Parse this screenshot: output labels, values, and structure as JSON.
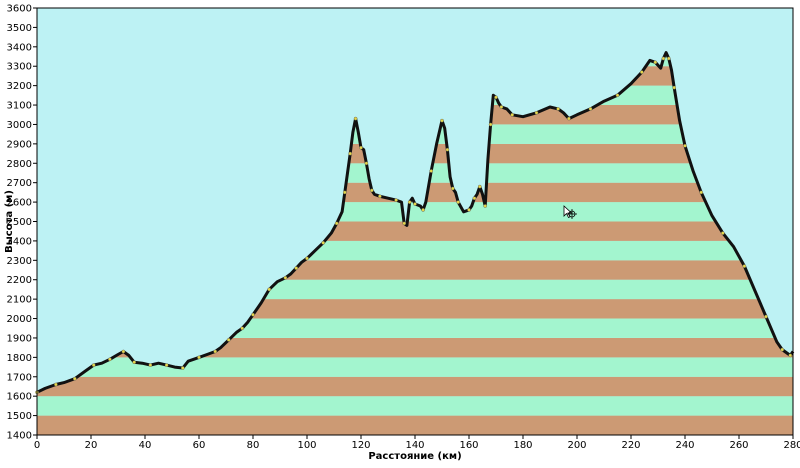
{
  "chart_data": {
    "type": "area",
    "title": "",
    "xlabel": "Расстояние (км)",
    "ylabel": "Высота (м)",
    "xlim": [
      0,
      280
    ],
    "ylim": [
      1400,
      3600
    ],
    "x_ticks": [
      0,
      20,
      40,
      60,
      80,
      100,
      120,
      140,
      160,
      180,
      200,
      220,
      240,
      260,
      280
    ],
    "y_ticks": [
      1400,
      1500,
      1600,
      1700,
      1800,
      1900,
      2000,
      2100,
      2200,
      2300,
      2400,
      2500,
      2600,
      2700,
      2800,
      2900,
      3000,
      3100,
      3200,
      3300,
      3400,
      3500,
      3600
    ],
    "colors": {
      "sky": "#bdf2f4",
      "band_light": "#a3f5cf",
      "band_dark": "#cc9a74",
      "profile_line": "#111111",
      "marker": "#e6d84a",
      "frame": "#000000"
    },
    "series": [
      {
        "x": [
          0,
          3,
          7,
          10,
          14,
          18,
          21,
          24,
          27,
          30,
          32,
          34,
          36,
          39,
          42,
          45,
          48,
          51,
          54,
          56,
          60,
          64,
          66,
          68,
          71,
          74,
          76,
          78,
          80,
          83,
          86,
          89,
          92,
          94,
          96,
          98,
          100,
          103,
          106,
          109,
          111,
          113,
          114,
          115,
          116,
          117,
          118,
          119,
          120,
          121,
          122,
          123,
          124,
          125,
          127,
          130,
          133,
          135,
          136,
          137,
          138,
          139,
          140,
          142,
          143,
          144,
          146,
          148,
          150,
          151,
          152,
          153,
          154,
          155,
          156,
          158,
          160,
          161,
          162,
          163,
          164,
          165,
          166,
          167,
          168,
          169,
          170,
          171,
          172,
          174,
          176,
          180,
          185,
          190,
          193,
          195,
          197,
          200,
          205,
          210,
          215,
          220,
          224,
          227,
          229,
          231,
          232,
          233,
          234,
          235,
          236,
          238,
          240,
          243,
          246,
          250,
          254,
          258,
          262,
          266,
          270,
          274,
          276,
          278,
          279,
          280
        ],
        "y": [
          1620,
          1640,
          1660,
          1670,
          1690,
          1730,
          1760,
          1770,
          1790,
          1815,
          1830,
          1810,
          1775,
          1770,
          1760,
          1770,
          1760,
          1750,
          1745,
          1780,
          1800,
          1820,
          1830,
          1850,
          1890,
          1930,
          1950,
          1980,
          2020,
          2080,
          2150,
          2190,
          2210,
          2230,
          2260,
          2290,
          2310,
          2350,
          2390,
          2440,
          2490,
          2550,
          2650,
          2750,
          2850,
          2960,
          3030,
          2960,
          2880,
          2870,
          2800,
          2720,
          2660,
          2640,
          2630,
          2620,
          2610,
          2600,
          2490,
          2480,
          2600,
          2620,
          2590,
          2580,
          2560,
          2600,
          2760,
          2900,
          3020,
          2980,
          2870,
          2730,
          2670,
          2650,
          2600,
          2550,
          2560,
          2580,
          2620,
          2640,
          2680,
          2640,
          2580,
          2820,
          3000,
          3150,
          3140,
          3110,
          3090,
          3080,
          3050,
          3040,
          3060,
          3090,
          3080,
          3060,
          3030,
          3050,
          3080,
          3120,
          3150,
          3210,
          3270,
          3330,
          3320,
          3290,
          3340,
          3370,
          3340,
          3280,
          3190,
          3020,
          2890,
          2760,
          2650,
          2530,
          2440,
          2370,
          2270,
          2140,
          2010,
          1880,
          1840,
          1820,
          1810,
          1830
        ]
      }
    ]
  }
}
